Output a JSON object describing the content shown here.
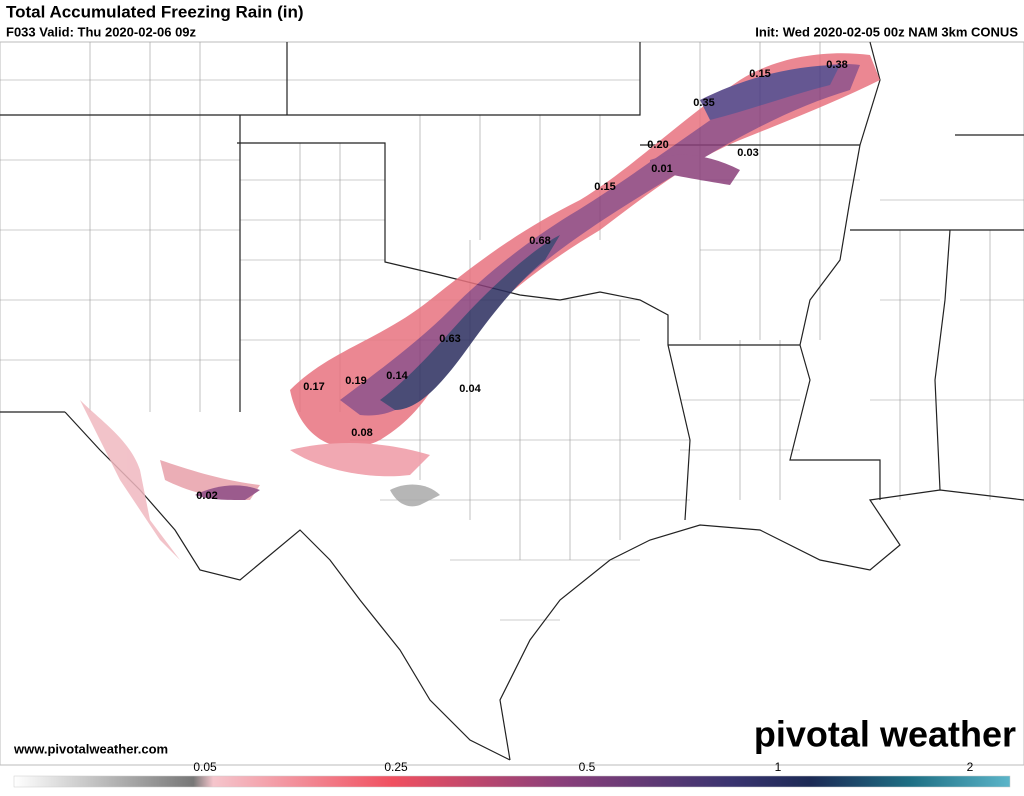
{
  "header": {
    "title": "Total Accumulated Freezing Rain (in)",
    "valid": "F033 Valid: Thu 2020-02-06 09z",
    "init": "Init: Wed 2020-02-05 00z NAM 3km CONUS"
  },
  "map": {
    "labels": [
      "0.15",
      "0.38",
      "0.35",
      "0.20",
      "0.03",
      "0.01",
      "0.15",
      "0.68",
      "0.63",
      "0.17",
      "0.19",
      "0.14",
      "0.04",
      "0.08",
      "0.02"
    ]
  },
  "footer": {
    "website": "www.pivotalweather.com",
    "logo": "pivotal weather"
  },
  "colorbar": {
    "ticks": [
      "0.05",
      "0.25",
      "0.5",
      "1",
      "2"
    ]
  }
}
